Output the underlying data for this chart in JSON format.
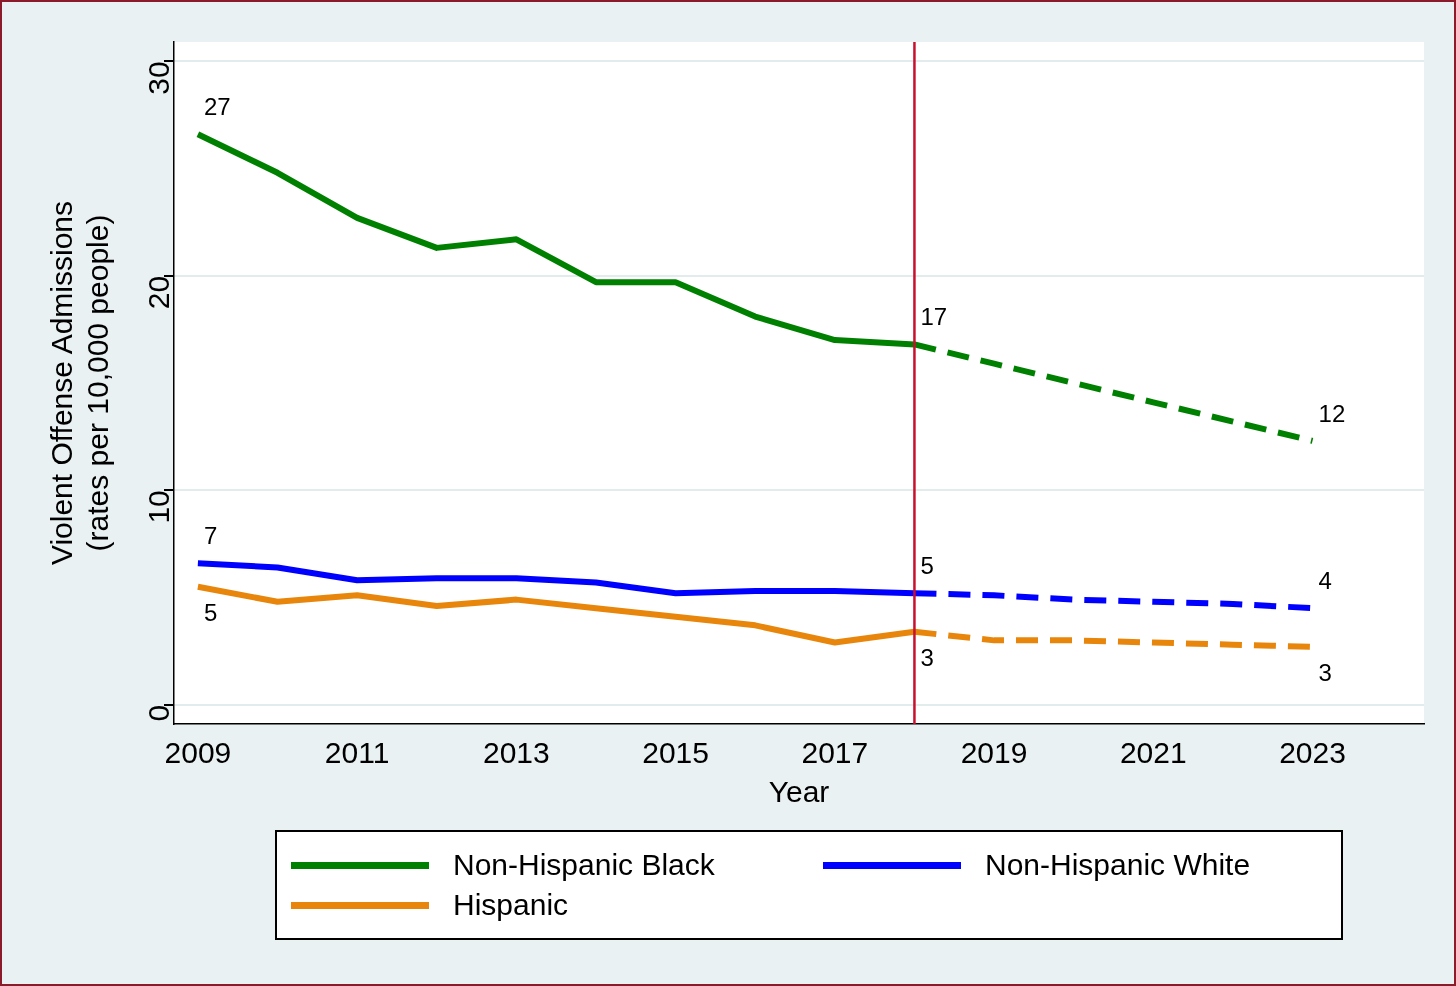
{
  "chart_data": {
    "type": "line",
    "xlabel": "Year",
    "ylabel": "Violent Offense Admissions\n(rates per 10,000 people)",
    "xlim": [
      2008.7,
      2024.4
    ],
    "xticks": [
      2009,
      2011,
      2013,
      2015,
      2017,
      2019,
      2021,
      2023
    ],
    "ylim": [
      -0.9,
      30.9
    ],
    "yticks": [
      0,
      10,
      20,
      30
    ],
    "grid": "y",
    "legend": "bottom",
    "marker": "none",
    "ref_lines": [
      {
        "axis": "x",
        "value": 2018,
        "color": "#c8102e"
      }
    ],
    "series": [
      {
        "name": "Non-Hispanic Black",
        "color": "#008000",
        "line_style": "solid",
        "x": [
          2009,
          2010,
          2011,
          2012,
          2013,
          2014,
          2015,
          2016,
          2017,
          2018
        ],
        "values": [
          26.6,
          24.8,
          22.7,
          21.3,
          21.7,
          19.7,
          19.7,
          18.1,
          17.0,
          16.8
        ],
        "value_labels": [
          "27",
          null,
          null,
          null,
          null,
          null,
          null,
          null,
          null,
          "17"
        ]
      },
      {
        "name": "Non-Hispanic White",
        "color": "#0000ff",
        "line_style": "solid",
        "x": [
          2009,
          2010,
          2011,
          2012,
          2013,
          2014,
          2015,
          2016,
          2017,
          2018
        ],
        "values": [
          6.6,
          6.4,
          5.8,
          5.9,
          5.9,
          5.7,
          5.2,
          5.3,
          5.3,
          5.2
        ],
        "value_labels": [
          "7",
          null,
          null,
          null,
          null,
          null,
          null,
          null,
          null,
          "5"
        ]
      },
      {
        "name": "Hispanic",
        "color": "#e8860c",
        "line_style": "solid",
        "x": [
          2009,
          2010,
          2011,
          2012,
          2013,
          2014,
          2015,
          2016,
          2017,
          2018
        ],
        "values": [
          5.5,
          4.8,
          5.1,
          4.6,
          4.9,
          4.5,
          4.1,
          3.7,
          2.9,
          3.4
        ],
        "value_labels": [
          "5",
          null,
          null,
          null,
          null,
          null,
          null,
          null,
          null,
          "3"
        ]
      },
      {
        "color": "#008000",
        "line_style": "dashed",
        "x": [
          2018,
          2019,
          2020,
          2021,
          2022,
          2023
        ],
        "values": [
          16.8,
          15.9,
          15.0,
          14.1,
          13.2,
          12.3
        ],
        "value_labels": [
          null,
          null,
          null,
          null,
          null,
          "12"
        ]
      },
      {
        "color": "#0000ff",
        "line_style": "dashed",
        "x": [
          2018,
          2019,
          2020,
          2021,
          2022,
          2023
        ],
        "values": [
          5.2,
          5.1,
          4.9,
          4.8,
          4.7,
          4.5
        ],
        "value_labels": [
          null,
          null,
          null,
          null,
          null,
          "4"
        ]
      },
      {
        "color": "#e8860c",
        "line_style": "dashed",
        "x": [
          2018,
          2019,
          2020,
          2021,
          2022,
          2023
        ],
        "values": [
          3.4,
          3.0,
          3.0,
          2.9,
          2.8,
          2.7
        ],
        "value_labels": [
          null,
          null,
          null,
          null,
          null,
          "3"
        ]
      }
    ]
  }
}
